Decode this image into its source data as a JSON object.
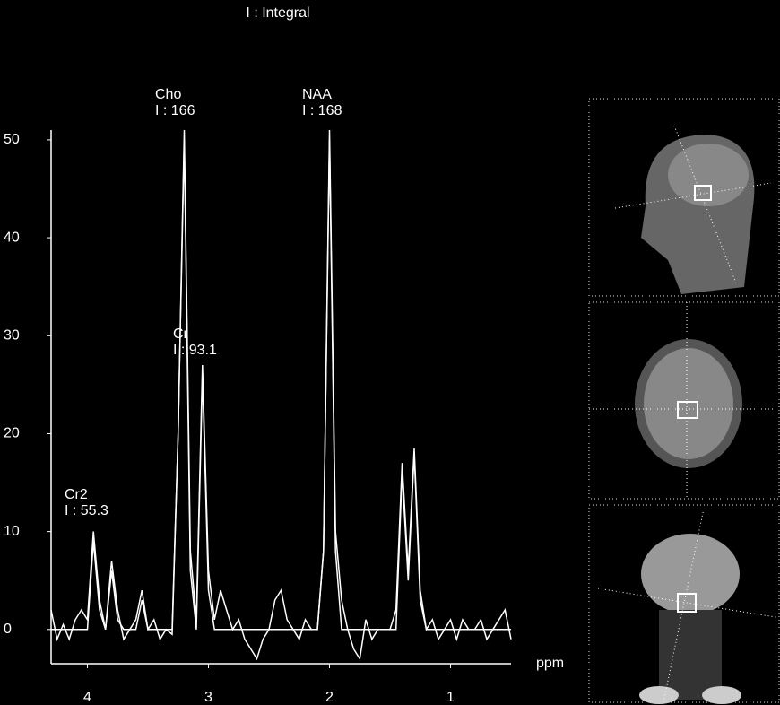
{
  "chart_data": {
    "type": "line",
    "title": "I : Integral",
    "x": [
      4.3,
      4.25,
      4.2,
      4.15,
      4.1,
      4.05,
      4.0,
      3.95,
      3.9,
      3.85,
      3.8,
      3.75,
      3.7,
      3.65,
      3.6,
      3.55,
      3.5,
      3.45,
      3.4,
      3.35,
      3.3,
      3.25,
      3.2,
      3.15,
      3.1,
      3.05,
      3.0,
      2.95,
      2.9,
      2.85,
      2.8,
      2.75,
      2.7,
      2.65,
      2.6,
      2.55,
      2.5,
      2.45,
      2.4,
      2.35,
      2.3,
      2.25,
      2.2,
      2.15,
      2.1,
      2.05,
      2.0,
      1.95,
      1.9,
      1.85,
      1.8,
      1.75,
      1.7,
      1.65,
      1.6,
      1.55,
      1.5,
      1.45,
      1.4,
      1.35,
      1.3,
      1.25,
      1.2,
      1.15,
      1.1,
      1.05,
      1.0,
      0.95,
      0.9,
      0.85,
      0.8,
      0.75,
      0.7,
      0.65,
      0.6,
      0.55,
      0.5
    ],
    "series": [
      {
        "color": "#ffffff",
        "values": [
          2,
          -1,
          0.5,
          -1,
          1,
          2,
          1,
          10,
          3,
          0,
          7,
          2,
          -1,
          0,
          1,
          4,
          0,
          1,
          -1,
          0,
          -0.5,
          20,
          51,
          8,
          1,
          27,
          6,
          1,
          4,
          2,
          0,
          1,
          -1,
          -2,
          -3,
          -1,
          0,
          3,
          4,
          1,
          0,
          -1,
          1,
          0,
          0,
          8,
          51,
          10,
          3,
          0,
          -2,
          -3,
          1,
          -1,
          0,
          0,
          0,
          2,
          17,
          6,
          18.5,
          4,
          0,
          1,
          -1,
          0,
          1,
          -1,
          1,
          0,
          0,
          1,
          -1,
          0,
          1,
          2,
          -1
        ]
      },
      {
        "color": "#ffffff",
        "values": [
          0,
          0,
          0,
          0,
          0,
          0,
          0,
          9,
          2,
          0,
          6,
          1,
          0,
          0,
          0,
          3,
          0,
          0,
          0,
          0,
          0,
          20,
          50,
          6,
          0,
          26,
          4,
          0,
          0,
          0,
          0,
          0,
          0,
          0,
          0,
          0,
          0,
          0,
          0,
          0,
          0,
          0,
          0,
          0,
          0,
          8,
          50,
          8,
          0,
          0,
          0,
          0,
          0,
          0,
          0,
          0,
          0,
          0,
          16,
          5,
          18,
          3,
          0,
          0,
          0,
          0,
          0,
          0,
          0,
          0,
          0,
          0,
          0,
          0,
          0,
          0,
          0
        ]
      }
    ],
    "xlim": [
      4.3,
      0.5
    ],
    "ylim": [
      -3.5,
      51
    ],
    "xticks": [
      4,
      3,
      2,
      1
    ],
    "yticks": [
      0,
      10,
      20,
      30,
      40,
      50
    ],
    "x_label": "ppm",
    "annotations": [
      {
        "name": "Cr2",
        "integral": "I : 55.3"
      },
      {
        "name": "Cho",
        "integral": "I : 166"
      },
      {
        "name": "Cr",
        "integral": "I : 93.1"
      },
      {
        "name": "NAA",
        "integral": "I : 168"
      }
    ]
  }
}
